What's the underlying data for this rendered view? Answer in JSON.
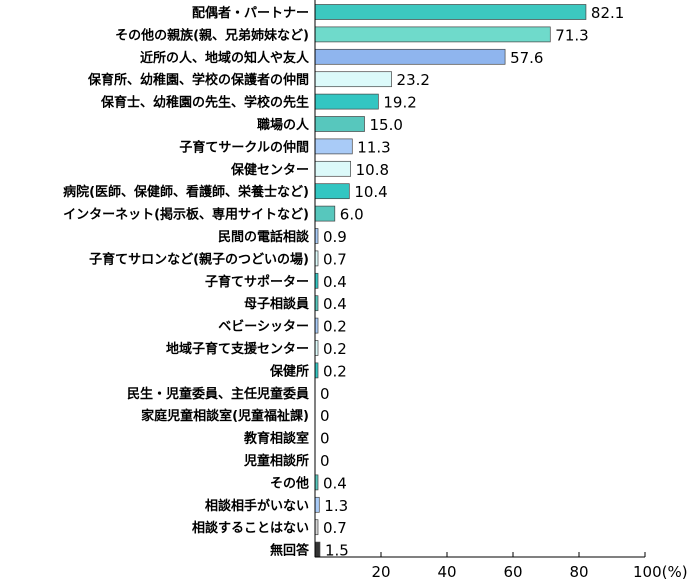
{
  "chart_data": {
    "type": "bar",
    "orientation": "horizontal",
    "categories": [
      "配偶者・パートナー",
      "その他の親族(親、兄弟姉妹など)",
      "近所の人、地域の知人や友人",
      "保育所、幼稚園、学校の保護者の仲間",
      "保育士、幼稚園の先生、学校の先生",
      "職場の人",
      "子育てサークルの仲間",
      "保健センター",
      "病院(医師、保健師、看護師、栄養士など)",
      "インターネット(掲示板、専用サイトなど)",
      "民間の電話相談",
      "子育てサロンなど(親子のつどいの場)",
      "子育てサポーター",
      "母子相談員",
      "ベビーシッター",
      "地域子育て支援センター",
      "保健所",
      "民生・児童委員、主任児童委員",
      "家庭児童相談室(児童福祉課)",
      "教育相談室",
      "児童相談所",
      "その他",
      "相談相手がいない",
      "相談することはない",
      "無回答"
    ],
    "values": [
      82.1,
      71.3,
      57.6,
      23.2,
      19.2,
      15.0,
      11.3,
      10.8,
      10.4,
      6.0,
      0.9,
      0.7,
      0.4,
      0.4,
      0.2,
      0.2,
      0.2,
      0,
      0,
      0,
      0,
      0.4,
      1.3,
      0.7,
      1.5
    ],
    "value_labels": [
      "82.1",
      "71.3",
      "57.6",
      "23.2",
      "19.2",
      "15.0",
      "11.3",
      "10.8",
      "10.4",
      "6.0",
      "0.9",
      "0.7",
      "0.4",
      "0.4",
      "0.2",
      "0.2",
      "0.2",
      "0",
      "0",
      "0",
      "0",
      "0.4",
      "1.3",
      "0.7",
      "1.5"
    ],
    "bar_colors": [
      "#3cc8c0",
      "#6fdacb",
      "#8fb5ee",
      "#dcfafa",
      "#33c6c2",
      "#57c7bd",
      "#a9cbf7",
      "#dcfafa",
      "#33c6c2",
      "#57c7bd",
      "#a9cbf7",
      "#dcfafa",
      "#33c6c2",
      "#57c7bd",
      "#a9cbf7",
      "#dcfafa",
      "#33c6c2",
      "#57c7bd",
      "#a9cbf7",
      "#dcfafa",
      "#33c6c2",
      "#57c7bd",
      "#a9cbf7",
      "#d4d4d4",
      "#333333"
    ],
    "x_ticks": [
      "20",
      "40",
      "60",
      "80",
      "100(%)"
    ],
    "x_tick_values": [
      20,
      40,
      60,
      80,
      100
    ],
    "xlim": [
      0,
      100
    ],
    "grid": false
  }
}
